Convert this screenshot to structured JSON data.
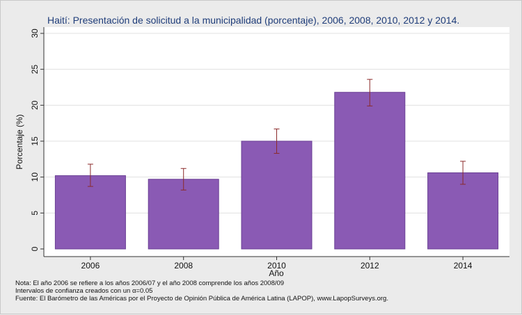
{
  "chart_data": {
    "type": "bar",
    "title": "Haití: Presentación de solicitud a la municipalidad (porcentaje), 2006, 2008, 2010, 2012 y 2014.",
    "xlabel": "Año",
    "ylabel": "Porcentaje (%)",
    "categories": [
      "2006",
      "2008",
      "2010",
      "2012",
      "2014"
    ],
    "values": [
      10.2,
      9.7,
      15.0,
      21.8,
      10.6
    ],
    "error_low": [
      8.7,
      8.2,
      13.3,
      19.9,
      9.0
    ],
    "error_high": [
      11.8,
      11.2,
      16.7,
      23.6,
      12.2
    ],
    "ylim": [
      0,
      30
    ],
    "yticks": [
      "0",
      "5",
      "10",
      "15",
      "20",
      "25",
      "30"
    ],
    "ytick_values": [
      0,
      5,
      10,
      15,
      20,
      25,
      30
    ],
    "grid": true,
    "colors": {
      "bar_fill": "#8a5ab4",
      "bar_stroke": "#6a3f94",
      "error_bar": "#8b2a2a",
      "title": "#1f3d7a",
      "grid": "#e0e0e0",
      "plot_bg": "#ffffff"
    }
  },
  "notes": {
    "note1": "Nota: El año 2006 se refiere a los años 2006/07 y el año 2008 comprende los años 2008/09",
    "note2": "Intervalos de confianza creados con un α=0.05",
    "source": "Fuente: El Barómetro de las Américas por el Proyecto de Opinión Pública de América Latina (LAPOP), www.LapopSurveys.org."
  }
}
